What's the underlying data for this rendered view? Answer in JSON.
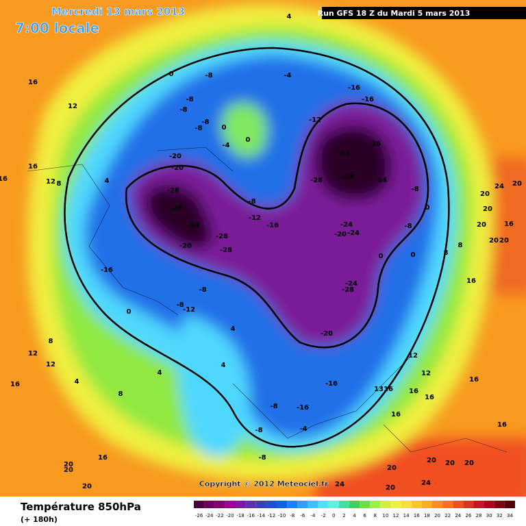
{
  "header": {
    "date": "Mercredi 13 mars 2013",
    "time": "7:00 locale",
    "run": "Run GFS 18 Z du Mardi 5 mars 2013"
  },
  "copyright": "Copyright © 2012 Meteociel.fr",
  "footer": {
    "title": "Température 850hPa",
    "lead": "(+ 180h)"
  },
  "colorbar": {
    "values": [
      -26,
      -24,
      -22,
      -20,
      -18,
      -16,
      -14,
      -12,
      -10,
      -8,
      -6,
      -4,
      -2,
      0,
      2,
      4,
      6,
      8,
      10,
      12,
      14,
      16,
      18,
      20,
      22,
      24,
      26,
      28,
      30,
      32,
      34
    ],
    "colors": [
      "#4b003f",
      "#6a005a",
      "#800070",
      "#9a0090",
      "#7a1aa0",
      "#6030a8",
      "#3c40b8",
      "#2050d0",
      "#1060e8",
      "#1a80ff",
      "#30a0ff",
      "#40c0ff",
      "#50e0ff",
      "#60f0e0",
      "#40e0a0",
      "#40d060",
      "#70e040",
      "#a0f040",
      "#d0f040",
      "#f0f040",
      "#f8e030",
      "#f8c820",
      "#f8b020",
      "#f89020",
      "#f87020",
      "#f05020",
      "#e03020",
      "#d01020",
      "#b00020",
      "#800010",
      "#500008"
    ]
  },
  "map_labels": [
    "4",
    "0",
    "-8",
    "-4",
    "-8",
    "-8",
    "-8",
    "-8",
    "0",
    "-4",
    "0",
    "-12",
    "-16",
    "-16",
    "-32",
    "-28",
    "-28",
    "-28",
    "-24",
    "-8",
    "0",
    "-8",
    "-24",
    "-20",
    "-24",
    "-24",
    "-28",
    "-20",
    "-16",
    "-16",
    "-8",
    "-4",
    "-8",
    "-8",
    "0",
    "0",
    "8",
    "8",
    "16",
    "20",
    "20",
    "20",
    "16",
    "20",
    "20",
    "24",
    "20",
    "16",
    "12",
    "16",
    "16",
    "12",
    "8",
    "4",
    "-20",
    "-20",
    "-28",
    "-28",
    "-24",
    "-28",
    "-20",
    "-28",
    "-8",
    "-12",
    "-16",
    "-16",
    "0",
    "-8",
    "-12",
    "-8",
    "4",
    "4",
    "8",
    "12",
    "12",
    "4",
    "4",
    "16",
    "8",
    "16",
    "20",
    "20",
    "20",
    "24",
    "20",
    "24",
    "20",
    "20",
    "20",
    "20",
    "12",
    "12",
    "16",
    "16",
    "16",
    "16",
    "16",
    "1316"
  ]
}
